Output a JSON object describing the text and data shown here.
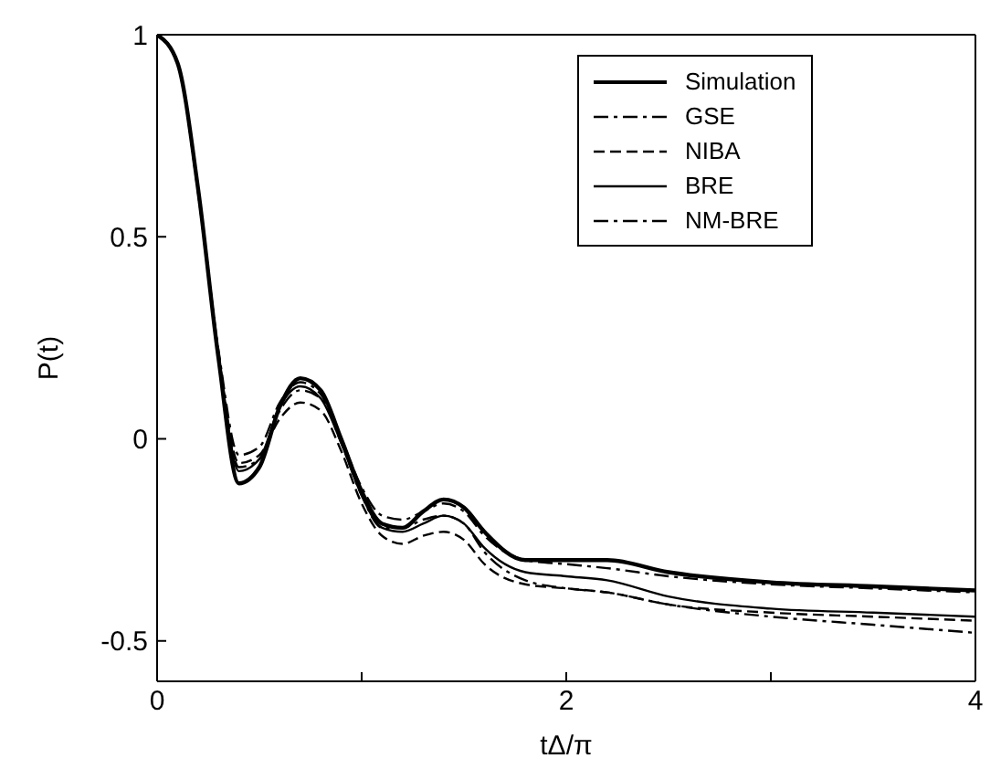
{
  "chart_data": {
    "type": "line",
    "xlabel": "tΔ/π",
    "ylabel": "P(t)",
    "x": [
      0,
      0.1,
      0.2,
      0.3,
      0.4,
      0.5,
      0.6,
      0.7,
      0.8,
      0.9,
      1.0,
      1.1,
      1.2,
      1.3,
      1.4,
      1.5,
      1.6,
      1.8,
      2.0,
      2.2,
      2.5,
      3.0,
      3.5,
      4.0
    ],
    "series": [
      {
        "name": "Simulation",
        "color": "#000000",
        "line_style": "solid",
        "values": [
          1,
          0.93,
          0.62,
          0.2,
          -0.11,
          -0.07,
          0.08,
          0.15,
          0.12,
          0.0,
          -0.13,
          -0.21,
          -0.22,
          -0.18,
          -0.15,
          -0.17,
          -0.23,
          -0.3,
          -0.3,
          -0.3,
          -0.33,
          -0.355,
          -0.365,
          -0.375
        ]
      },
      {
        "name": "GSE",
        "color": "#000000",
        "line_style": "dashdot",
        "values": [
          1,
          0.93,
          0.62,
          0.21,
          -0.07,
          -0.05,
          0.07,
          0.12,
          0.1,
          -0.01,
          -0.14,
          -0.22,
          -0.22,
          -0.2,
          -0.19,
          -0.21,
          -0.28,
          -0.35,
          -0.37,
          -0.38,
          -0.41,
          -0.44,
          -0.46,
          -0.48
        ]
      },
      {
        "name": "NIBA",
        "color": "#000000",
        "line_style": "dashed",
        "values": [
          1,
          0.93,
          0.61,
          0.21,
          -0.06,
          -0.04,
          0.05,
          0.09,
          0.07,
          -0.03,
          -0.16,
          -0.24,
          -0.26,
          -0.24,
          -0.23,
          -0.25,
          -0.31,
          -0.36,
          -0.37,
          -0.38,
          -0.41,
          -0.43,
          -0.44,
          -0.45
        ]
      },
      {
        "name": "BRE",
        "color": "#000000",
        "line_style": "solid",
        "values": [
          1,
          0.93,
          0.62,
          0.21,
          -0.08,
          -0.05,
          0.08,
          0.13,
          0.1,
          -0.01,
          -0.14,
          -0.22,
          -0.23,
          -0.21,
          -0.19,
          -0.21,
          -0.27,
          -0.33,
          -0.34,
          -0.35,
          -0.39,
          -0.42,
          -0.43,
          -0.44
        ]
      },
      {
        "name": "NM-BRE",
        "color": "#000000",
        "line_style": "dashdot",
        "values": [
          1,
          0.93,
          0.62,
          0.22,
          -0.04,
          -0.02,
          0.09,
          0.14,
          0.11,
          0.0,
          -0.12,
          -0.19,
          -0.2,
          -0.18,
          -0.16,
          -0.18,
          -0.24,
          -0.3,
          -0.31,
          -0.32,
          -0.34,
          -0.36,
          -0.37,
          -0.38
        ]
      }
    ],
    "xlim": [
      0,
      4
    ],
    "xticks": [
      0,
      {
        "value": 1,
        "label": null
      },
      2,
      {
        "value": 3,
        "label": null
      },
      4
    ],
    "ylim": [
      -0.6,
      1
    ],
    "yticks": [
      -0.5,
      0,
      0.5,
      1
    ],
    "grid": false,
    "legend": "top right",
    "marker": "none"
  }
}
